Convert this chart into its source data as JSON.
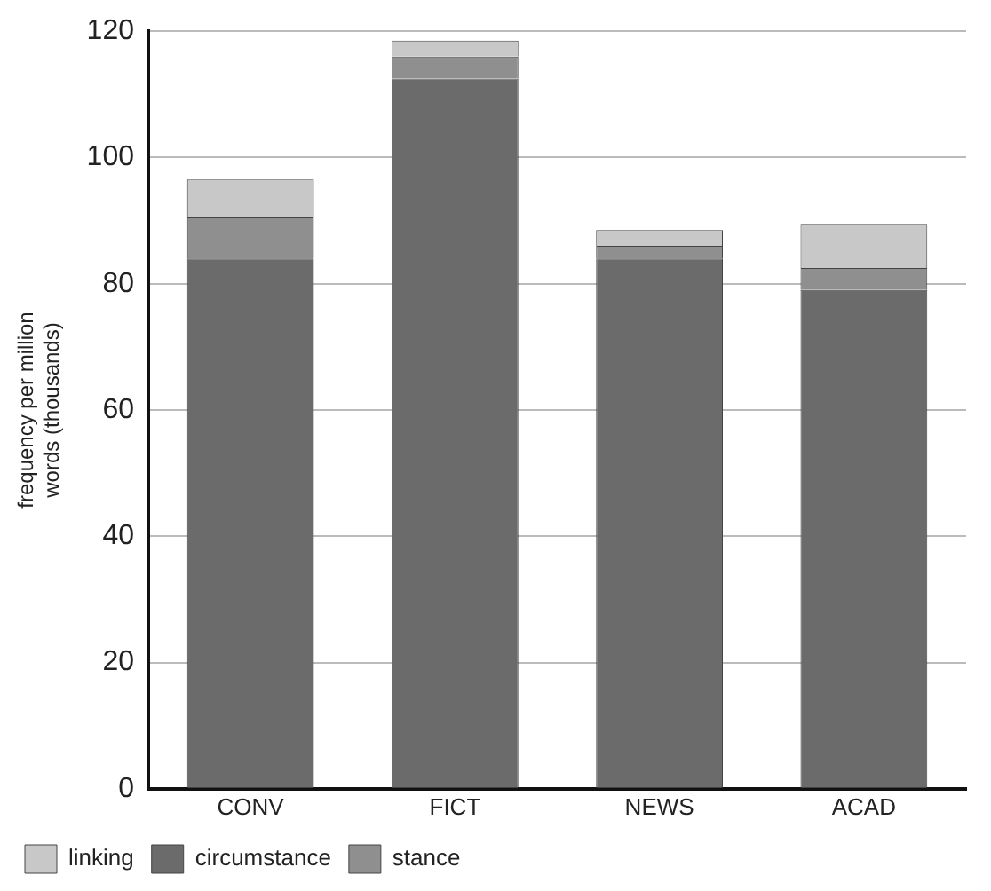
{
  "chart_data": {
    "type": "bar",
    "stacked": true,
    "ylabel": "frequency per million words (thousands)",
    "categories": [
      "CONV",
      "FICT",
      "NEWS",
      "ACAD"
    ],
    "series": [
      {
        "name": "circumstance",
        "color": "#6b6b6b",
        "values": [
          84,
          112.5,
          84,
          79
        ]
      },
      {
        "name": "stance",
        "color": "#8f8f8f",
        "values": [
          6.5,
          3.5,
          2,
          3.5
        ]
      },
      {
        "name": "linking",
        "color": "#c8c8c8",
        "values": [
          6,
          2.5,
          2.5,
          7
        ]
      }
    ],
    "ylim": [
      0,
      120
    ],
    "yticks": [
      0,
      20,
      40,
      60,
      80,
      100,
      120
    ],
    "grid": "y",
    "legend": "bottom"
  }
}
